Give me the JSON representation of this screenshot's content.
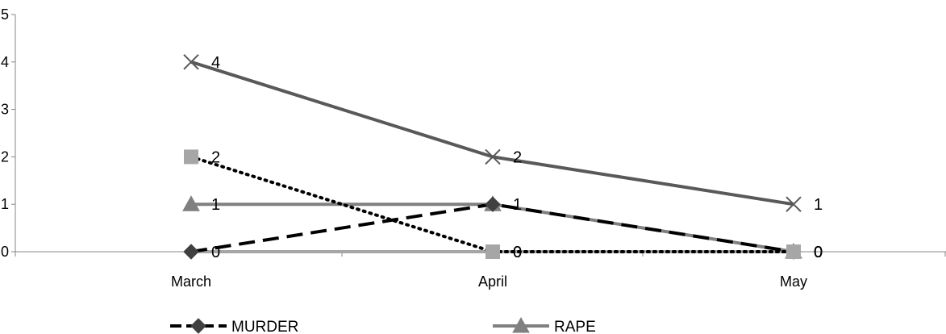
{
  "chart_data": {
    "type": "line",
    "categories": [
      "March",
      "April",
      "May"
    ],
    "ylim": [
      0,
      5
    ],
    "yticks": [
      0,
      1,
      2,
      3,
      4,
      5
    ],
    "grid": false,
    "legend_position": "bottom",
    "series": [
      {
        "name": "MURDER",
        "values": [
          0,
          1,
          0
        ],
        "color": "#000000",
        "dash": "dashed",
        "marker": "diamond",
        "labels": false
      },
      {
        "name": "RAPE",
        "values": [
          1,
          1,
          0
        ],
        "color": "#808080",
        "dash": "solid",
        "marker": "triangle",
        "labels": true
      },
      {
        "name": "",
        "values": [
          0,
          0,
          0
        ],
        "color": "#a6a6a6",
        "dash": "solid",
        "marker": "none",
        "labels": true
      },
      {
        "name": "",
        "values": [
          2,
          0,
          0
        ],
        "color": "#000000",
        "dash": "dotted",
        "marker": "square",
        "labels": true
      },
      {
        "name": "",
        "values": [
          4,
          2,
          1
        ],
        "color": "#595959",
        "dash": "solid",
        "marker": "x",
        "labels": true
      }
    ]
  }
}
